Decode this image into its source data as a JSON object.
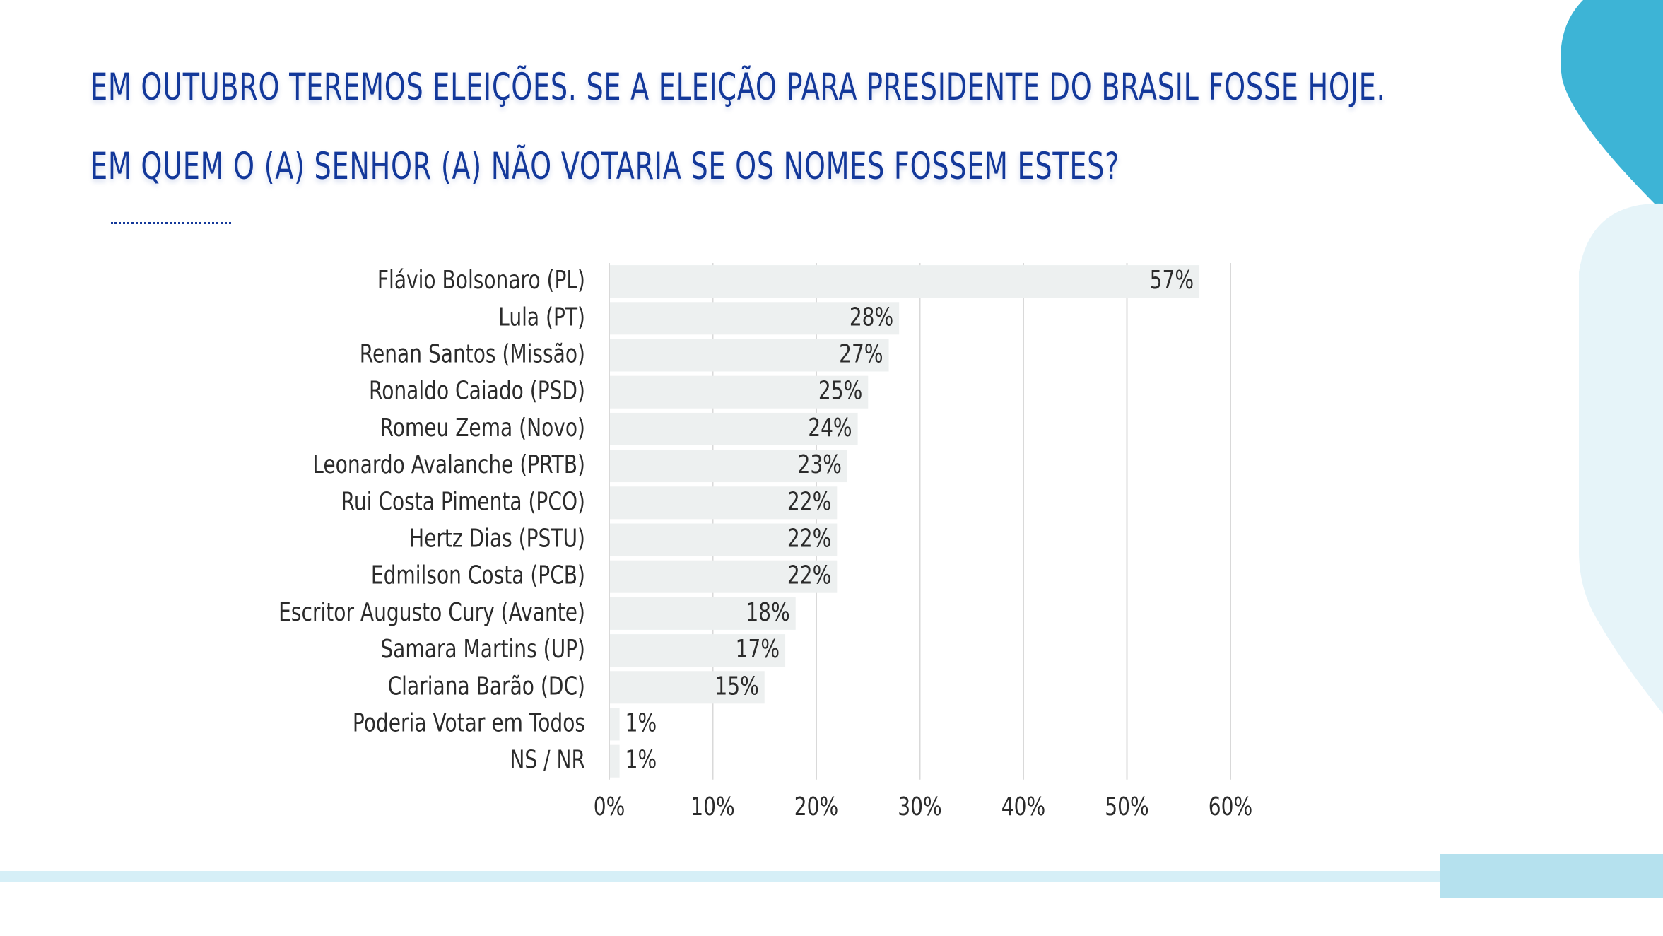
{
  "title_lines": [
    "EM OUTUBRO TEREMOS ELEIÇÕES. SE A ELEIÇÃO PARA PRESIDENTE DO BRASIL FOSSE HOJE.",
    "EM QUEM O (A) SENHOR (A) NÃO VOTARIA SE OS NOMES FOSSEM ESTES?"
  ],
  "colors": {
    "title": "#13389a",
    "bar": "#edf0f0",
    "accent_blue": "#3db4d6",
    "light_blue": "#e6f4f9",
    "band": "#d6eff7"
  },
  "chart_data": {
    "type": "bar",
    "orientation": "horizontal",
    "categories": [
      "Flávio Bolsonaro (PL)",
      "Lula (PT)",
      "Renan Santos (Missão)",
      "Ronaldo Caiado (PSD)",
      "Romeu Zema (Novo)",
      "Leonardo Avalanche (PRTB)",
      "Rui Costa Pimenta (PCO)",
      "Hertz Dias (PSTU)",
      "Edmilson Costa (PCB)",
      "Escritor Augusto Cury (Avante)",
      "Samara Martins (UP)",
      "Clariana Barão (DC)",
      "Poderia Votar em Todos",
      "NS / NR"
    ],
    "values": [
      57,
      28,
      27,
      25,
      24,
      23,
      22,
      22,
      22,
      18,
      17,
      15,
      1,
      1
    ],
    "value_labels": [
      "57%",
      "28%",
      "27%",
      "25%",
      "24%",
      "23%",
      "22%",
      "22%",
      "22%",
      "18%",
      "17%",
      "15%",
      "1%",
      "1%"
    ],
    "xlim": [
      0,
      60
    ],
    "xticks": [
      0,
      10,
      20,
      30,
      40,
      50,
      60
    ],
    "xtick_labels": [
      "0%",
      "10%",
      "20%",
      "30%",
      "40%",
      "50%",
      "60%"
    ],
    "grid": true,
    "legend": "none"
  }
}
